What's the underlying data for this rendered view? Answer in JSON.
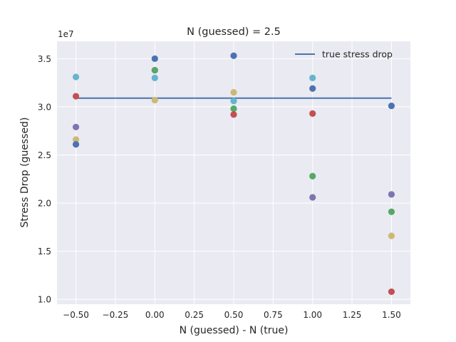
{
  "chart_data": {
    "type": "scatter",
    "title": "N (guessed) = 2.5",
    "xlabel": "N (guessed) - N (true)",
    "ylabel": "Stress Drop (guessed)",
    "y_exponent_label": "1e7",
    "xlim": [
      -0.62,
      1.62
    ],
    "ylim": [
      0.95,
      3.68
    ],
    "y_scale_factor": 10000000,
    "xticks": [
      -0.5,
      -0.25,
      0.0,
      0.25,
      0.5,
      0.75,
      1.0,
      1.25,
      1.5
    ],
    "xtick_labels": [
      "−0.50",
      "−0.25",
      "0.00",
      "0.25",
      "0.50",
      "0.75",
      "1.00",
      "1.25",
      "1.50"
    ],
    "yticks": [
      1.0,
      1.5,
      2.0,
      2.5,
      3.0,
      3.5
    ],
    "ytick_labels": [
      "1.0",
      "1.5",
      "2.0",
      "2.5",
      "3.0",
      "3.5"
    ],
    "grid": true,
    "legend_position": "top-right",
    "reference_line": {
      "name": "true stress drop",
      "x": [
        -0.5,
        1.5
      ],
      "y": [
        3.09,
        3.09
      ],
      "color": "#4c72b0"
    },
    "points": [
      {
        "x": -0.5,
        "y": 3.31,
        "color": "#64b5cd"
      },
      {
        "x": -0.5,
        "y": 3.11,
        "color": "#c44e52"
      },
      {
        "x": -0.5,
        "y": 2.79,
        "color": "#8172b2"
      },
      {
        "x": -0.5,
        "y": 2.66,
        "color": "#ccb974"
      },
      {
        "x": -0.5,
        "y": 2.61,
        "color": "#4c72b0"
      },
      {
        "x": 0.0,
        "y": 3.5,
        "color": "#4c72b0"
      },
      {
        "x": 0.0,
        "y": 3.38,
        "color": "#c44e52"
      },
      {
        "x": 0.0,
        "y": 3.38,
        "color": "#55a868"
      },
      {
        "x": 0.0,
        "y": 3.3,
        "color": "#64b5cd"
      },
      {
        "x": 0.0,
        "y": 3.07,
        "color": "#ccb974"
      },
      {
        "x": 0.5,
        "y": 3.53,
        "color": "#4c72b0"
      },
      {
        "x": 0.5,
        "y": 3.15,
        "color": "#ccb974"
      },
      {
        "x": 0.5,
        "y": 3.06,
        "color": "#64b5cd"
      },
      {
        "x": 0.5,
        "y": 2.98,
        "color": "#55a868"
      },
      {
        "x": 0.5,
        "y": 2.92,
        "color": "#c44e52"
      },
      {
        "x": 1.0,
        "y": 3.3,
        "color": "#64b5cd"
      },
      {
        "x": 1.0,
        "y": 3.19,
        "color": "#4c72b0"
      },
      {
        "x": 1.0,
        "y": 2.93,
        "color": "#c44e52"
      },
      {
        "x": 1.0,
        "y": 2.28,
        "color": "#55a868"
      },
      {
        "x": 1.0,
        "y": 2.06,
        "color": "#8172b2"
      },
      {
        "x": 1.5,
        "y": 3.01,
        "color": "#4c72b0"
      },
      {
        "x": 1.5,
        "y": 2.09,
        "color": "#8172b2"
      },
      {
        "x": 1.5,
        "y": 1.91,
        "color": "#55a868"
      },
      {
        "x": 1.5,
        "y": 1.66,
        "color": "#ccb974"
      },
      {
        "x": 1.5,
        "y": 1.08,
        "color": "#c44e52"
      }
    ]
  },
  "colors": {
    "plot_background": "#eaeaf2",
    "grid": "#ffffff",
    "text": "#262626"
  }
}
